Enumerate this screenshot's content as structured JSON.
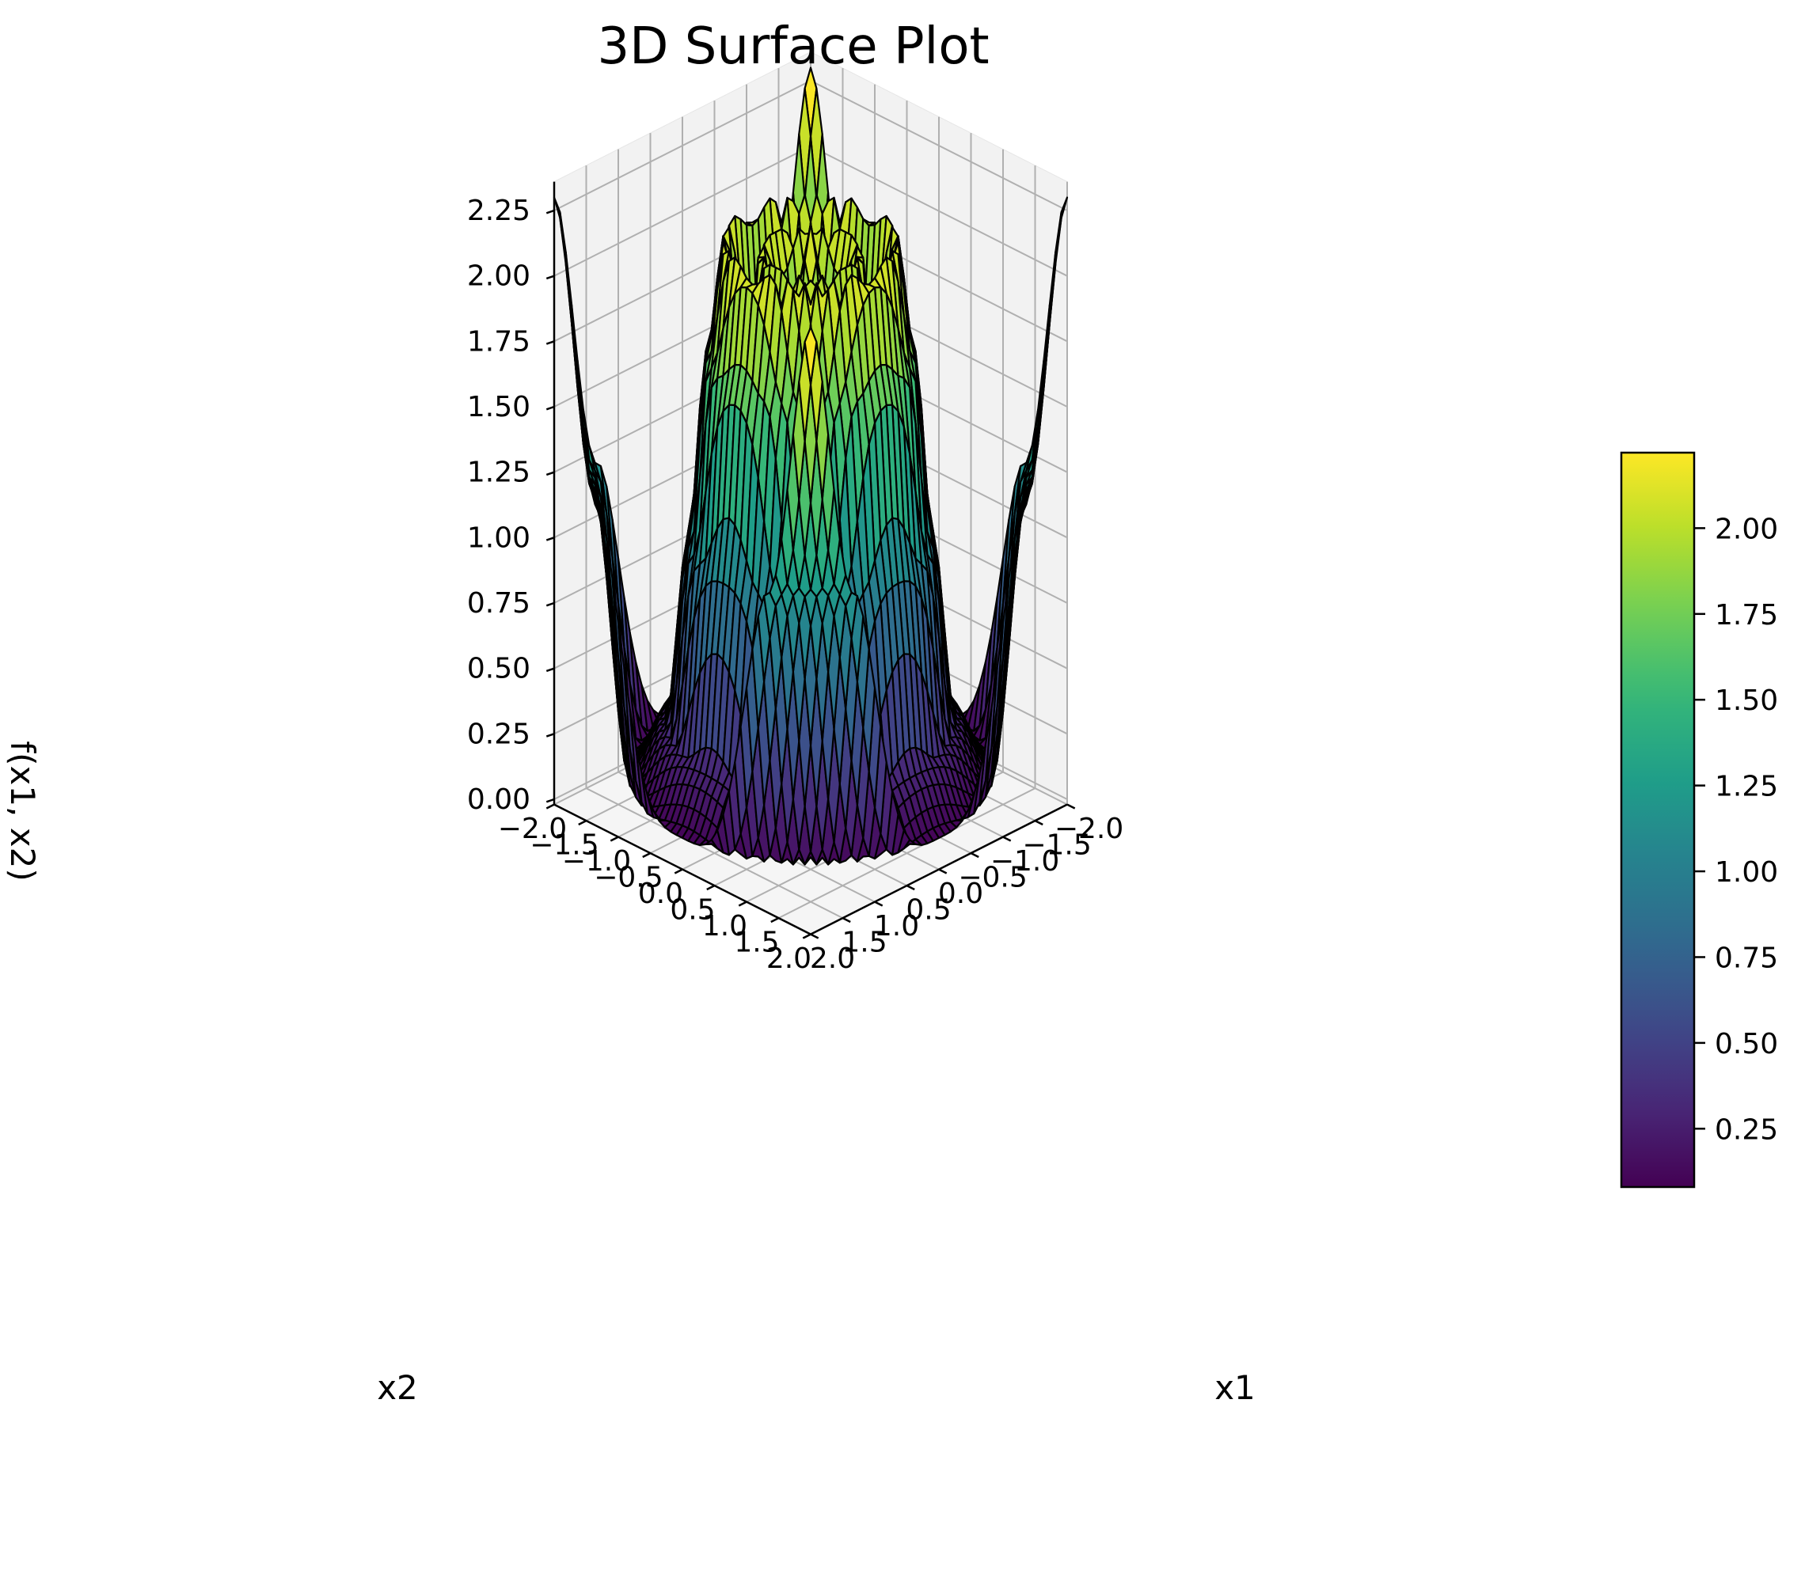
{
  "chart_data": {
    "type": "surface3d",
    "title": "3D Surface Plot",
    "xlabel": "x1",
    "ylabel": "x2",
    "zlabel": "f(x1, x2)",
    "x_range": [
      -2.0,
      2.0
    ],
    "y_range": [
      -2.0,
      2.0
    ],
    "z_range": [
      0.0,
      2.25
    ],
    "x_ticks": [
      "−2.0",
      "−1.5",
      "−1.0",
      "−0.5",
      "0.0",
      "0.5",
      "1.0",
      "1.5",
      "2.0"
    ],
    "y_ticks": [
      "−2.0",
      "−1.5",
      "−1.0",
      "−0.5",
      "0.0",
      "0.5",
      "1.0",
      "1.5",
      "2.0"
    ],
    "z_ticks": [
      "0.00",
      "0.25",
      "0.50",
      "0.75",
      "1.00",
      "1.25",
      "1.50",
      "1.75",
      "2.00",
      "2.25"
    ],
    "colormap": "viridis",
    "edge_color": "#000000",
    "surface_profile": {
      "r": [
        0.0,
        0.3,
        0.55,
        0.75,
        0.95,
        1.15,
        1.35,
        1.6,
        2.0,
        2.4,
        2.83
      ],
      "f": [
        2.2,
        1.6,
        2.1,
        1.5,
        2.15,
        1.7,
        1.0,
        0.3,
        0.1,
        1.2,
        2.3
      ]
    },
    "colorbar": {
      "range": [
        0.08,
        2.22
      ],
      "ticks": [
        "0.25",
        "0.50",
        "0.75",
        "1.00",
        "1.25",
        "1.50",
        "1.75",
        "2.00"
      ],
      "tick_values": [
        0.25,
        0.5,
        0.75,
        1.0,
        1.25,
        1.5,
        1.75,
        2.0
      ]
    },
    "grid": true,
    "view": {
      "elevation": 30,
      "azimuth": 45
    }
  }
}
